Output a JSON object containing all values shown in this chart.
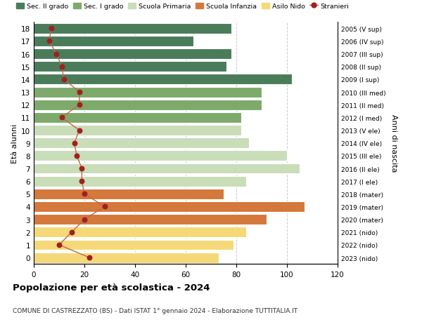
{
  "ages": [
    18,
    17,
    16,
    15,
    14,
    13,
    12,
    11,
    10,
    9,
    8,
    7,
    6,
    5,
    4,
    3,
    2,
    1,
    0
  ],
  "anni_nascita": [
    "2005 (V sup)",
    "2006 (IV sup)",
    "2007 (III sup)",
    "2008 (II sup)",
    "2009 (I sup)",
    "2010 (III med)",
    "2011 (II med)",
    "2012 (I med)",
    "2013 (V ele)",
    "2014 (IV ele)",
    "2015 (III ele)",
    "2016 (II ele)",
    "2017 (I ele)",
    "2018 (mater)",
    "2019 (mater)",
    "2020 (mater)",
    "2021 (nido)",
    "2022 (nido)",
    "2023 (nido)"
  ],
  "bar_values": [
    78,
    63,
    78,
    76,
    102,
    90,
    90,
    82,
    82,
    85,
    100,
    105,
    84,
    75,
    107,
    92,
    84,
    79,
    73
  ],
  "stranieri": [
    7,
    6,
    9,
    11,
    12,
    18,
    18,
    11,
    18,
    16,
    17,
    19,
    19,
    20,
    28,
    20,
    15,
    10,
    22
  ],
  "bar_colors": [
    "#4a7c59",
    "#4a7c59",
    "#4a7c59",
    "#4a7c59",
    "#4a7c59",
    "#7daa6b",
    "#7daa6b",
    "#7daa6b",
    "#c8ddb8",
    "#c8ddb8",
    "#c8ddb8",
    "#c8ddb8",
    "#c8ddb8",
    "#d4783c",
    "#d4783c",
    "#d4783c",
    "#f5d878",
    "#f5d878",
    "#f5d878"
  ],
  "legend_labels": [
    "Sec. II grado",
    "Sec. I grado",
    "Scuola Primaria",
    "Scuola Infanzia",
    "Asilo Nido",
    "Stranieri"
  ],
  "legend_colors": [
    "#4a7c59",
    "#7daa6b",
    "#c8ddb8",
    "#d4783c",
    "#f5d878",
    "#a02020"
  ],
  "title": "Popolazione per età scolastica - 2024",
  "subtitle": "COMUNE DI CASTREZZATO (BS) - Dati ISTAT 1° gennaio 2024 - Elaborazione TUTTITALIA.IT",
  "ylabel_left": "Età alunni",
  "ylabel_right": "Anni di nascita",
  "xlim": [
    0,
    120
  ],
  "xticks": [
    0,
    20,
    40,
    60,
    80,
    100,
    120
  ],
  "stranieri_color": "#a02020",
  "stranieri_line_color": "#c06848",
  "background_color": "#ffffff"
}
